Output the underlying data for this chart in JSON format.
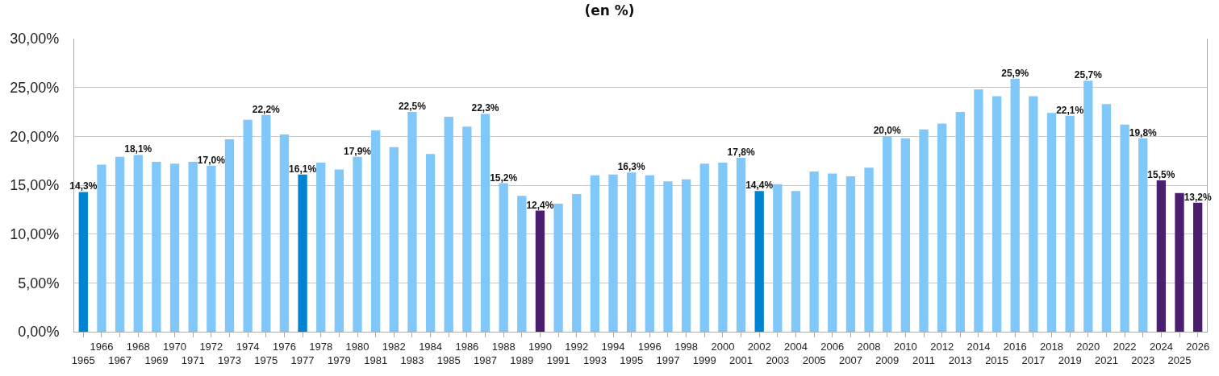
{
  "chart_data": {
    "type": "bar",
    "title": "(en %)",
    "categories": [
      "1965",
      "1966",
      "1967",
      "1968",
      "1969",
      "1970",
      "1971",
      "1972",
      "1973",
      "1974",
      "1975",
      "1976",
      "1977",
      "1978",
      "1979",
      "1980",
      "1981",
      "1982",
      "1983",
      "1984",
      "1985",
      "1986",
      "1987",
      "1988",
      "1989",
      "1990",
      "1991",
      "1992",
      "1993",
      "1994",
      "1995",
      "1996",
      "1997",
      "1998",
      "1999",
      "2000",
      "2001",
      "2002",
      "2003",
      "2004",
      "2005",
      "2006",
      "2007",
      "2008",
      "2009",
      "2010",
      "2011",
      "2012",
      "2013",
      "2014",
      "2015",
      "2016",
      "2017",
      "2018",
      "2019",
      "2020",
      "2021",
      "2022",
      "2023",
      "2024",
      "2025",
      "2026"
    ],
    "values": [
      14.3,
      17.1,
      17.9,
      18.1,
      17.4,
      17.2,
      17.4,
      17.0,
      19.7,
      21.7,
      22.2,
      20.2,
      16.1,
      17.3,
      16.6,
      17.9,
      20.6,
      18.9,
      22.5,
      18.2,
      22.0,
      21.0,
      22.3,
      15.2,
      13.9,
      12.4,
      13.1,
      14.1,
      16.0,
      16.1,
      16.3,
      16.0,
      15.4,
      15.6,
      17.2,
      17.3,
      17.8,
      14.4,
      15.1,
      14.4,
      16.4,
      16.2,
      15.9,
      16.8,
      20.0,
      19.8,
      20.7,
      21.3,
      22.5,
      24.8,
      24.1,
      25.9,
      24.1,
      22.4,
      22.1,
      25.7,
      23.3,
      21.2,
      19.8,
      15.5,
      14.2,
      13.2
    ],
    "value_labels": [
      "14,3%",
      null,
      null,
      "18,1%",
      null,
      null,
      null,
      "17,0%",
      null,
      null,
      "22,2%",
      null,
      "16,1%",
      null,
      null,
      "17,9%",
      null,
      null,
      "22,5%",
      null,
      null,
      null,
      "22,3%",
      "15,2%",
      null,
      "12,4%",
      null,
      null,
      null,
      null,
      "16,3%",
      null,
      null,
      null,
      null,
      null,
      "17,8%",
      "14,4%",
      null,
      null,
      null,
      null,
      null,
      null,
      "20,0%",
      null,
      null,
      null,
      null,
      null,
      null,
      "25,9%",
      null,
      null,
      "22,1%",
      "25,7%",
      null,
      null,
      "19,8%",
      "15,5%",
      null,
      "13,2%"
    ],
    "colors": [
      "#0083d0",
      "#80c8fa",
      "#80c8fa",
      "#80c8fa",
      "#80c8fa",
      "#80c8fa",
      "#80c8fa",
      "#80c8fa",
      "#80c8fa",
      "#80c8fa",
      "#80c8fa",
      "#80c8fa",
      "#0083d0",
      "#80c8fa",
      "#80c8fa",
      "#80c8fa",
      "#80c8fa",
      "#80c8fa",
      "#80c8fa",
      "#80c8fa",
      "#80c8fa",
      "#80c8fa",
      "#80c8fa",
      "#80c8fa",
      "#80c8fa",
      "#4b1f6f",
      "#80c8fa",
      "#80c8fa",
      "#80c8fa",
      "#80c8fa",
      "#80c8fa",
      "#80c8fa",
      "#80c8fa",
      "#80c8fa",
      "#80c8fa",
      "#80c8fa",
      "#80c8fa",
      "#0083d0",
      "#80c8fa",
      "#80c8fa",
      "#80c8fa",
      "#80c8fa",
      "#80c8fa",
      "#80c8fa",
      "#80c8fa",
      "#80c8fa",
      "#80c8fa",
      "#80c8fa",
      "#80c8fa",
      "#80c8fa",
      "#80c8fa",
      "#80c8fa",
      "#80c8fa",
      "#80c8fa",
      "#80c8fa",
      "#80c8fa",
      "#80c8fa",
      "#80c8fa",
      "#80c8fa",
      "#4b1f6f",
      "#4b1f6f",
      "#4b1f6f"
    ],
    "ylim": [
      0,
      30
    ],
    "yticks": [
      {
        "value": 0,
        "label": "0,00%"
      },
      {
        "value": 5,
        "label": "5,00%"
      },
      {
        "value": 10,
        "label": "10,00%"
      },
      {
        "value": 15,
        "label": "15,00%"
      },
      {
        "value": 20,
        "label": "20,00%"
      },
      {
        "value": 25,
        "label": "25,00%"
      },
      {
        "value": 30,
        "label": "30,00%"
      }
    ],
    "grid": "y"
  }
}
